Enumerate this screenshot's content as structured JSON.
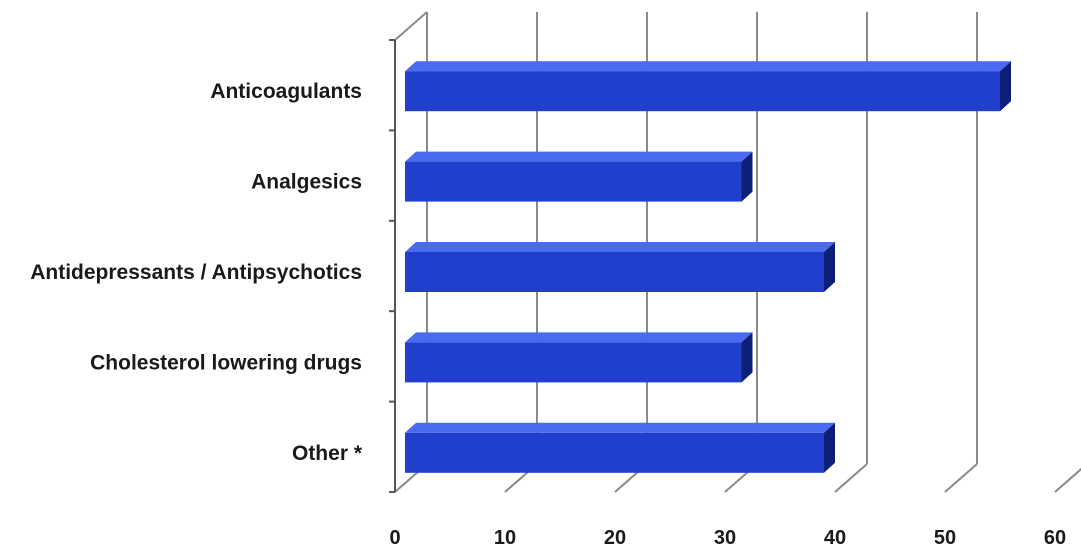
{
  "chart_data": {
    "type": "bar",
    "orientation": "horizontal",
    "style": "3d",
    "title": "",
    "xlabel": "",
    "ylabel": "",
    "categories": [
      "Anticoagulants",
      "Analgesics",
      "Antidepressants / Antipsychotics",
      "Cholesterol lowering drugs",
      "Other *"
    ],
    "values": [
      55,
      31.5,
      39,
      31.5,
      39
    ],
    "xlim": [
      0,
      60
    ],
    "ticks": [
      "0",
      "10",
      "20",
      "30",
      "40",
      "50",
      "60"
    ],
    "grid": true,
    "legend": "none",
    "colors": {
      "bar_front": "#1f3fcc",
      "bar_top": "#4a6af0",
      "bar_side": "#0d2077",
      "grid": "#8a8a8a"
    }
  }
}
